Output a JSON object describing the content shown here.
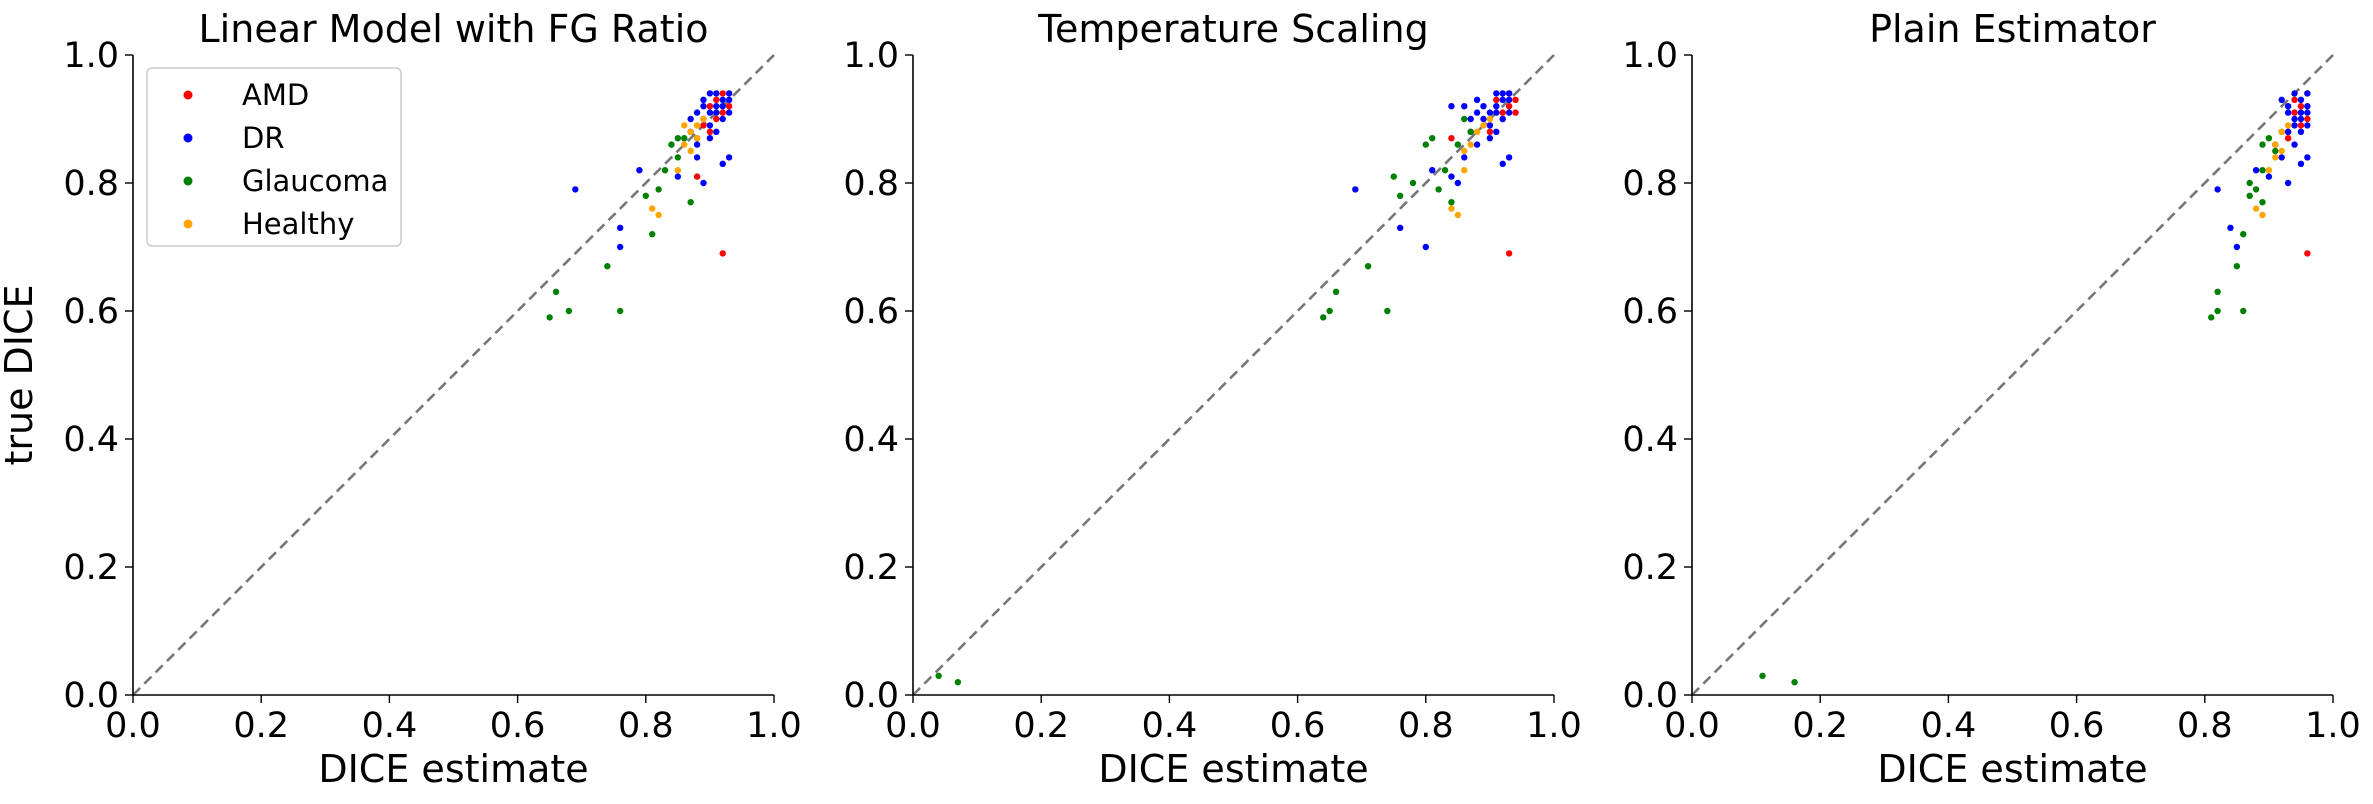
{
  "chart_data": [
    {
      "type": "scatter",
      "title": "Linear Model with FG Ratio",
      "xlabel": "DICE estimate",
      "ylabel": "true DICE",
      "xlim": [
        0,
        1
      ],
      "ylim": [
        0,
        1
      ],
      "xticks": [
        "0.0",
        "0.2",
        "0.4",
        "0.6",
        "0.8",
        "1.0"
      ],
      "yticks": [
        "0.0",
        "0.2",
        "0.4",
        "0.6",
        "0.8",
        "1.0"
      ],
      "reference_line": "y = x (dashed, gray)",
      "legend": {
        "position": "upper-left",
        "entries": [
          "AMD",
          "DR",
          "Glaucoma",
          "Healthy"
        ]
      },
      "series": [
        {
          "name": "AMD",
          "color": "#ff0000",
          "points": [
            [
              0.92,
              0.69
            ],
            [
              0.88,
              0.81
            ],
            [
              0.9,
              0.88
            ],
            [
              0.91,
              0.93
            ],
            [
              0.92,
              0.91
            ],
            [
              0.93,
              0.92
            ],
            [
              0.9,
              0.92
            ],
            [
              0.91,
              0.9
            ],
            [
              0.92,
              0.94
            ],
            [
              0.89,
              0.89
            ]
          ]
        },
        {
          "name": "DR",
          "color": "#0000ff",
          "points": [
            [
              0.69,
              0.79
            ],
            [
              0.76,
              0.73
            ],
            [
              0.76,
              0.7
            ],
            [
              0.79,
              0.82
            ],
            [
              0.85,
              0.81
            ],
            [
              0.88,
              0.84
            ],
            [
              0.89,
              0.8
            ],
            [
              0.92,
              0.83
            ],
            [
              0.93,
              0.84
            ],
            [
              0.87,
              0.88
            ],
            [
              0.89,
              0.9
            ],
            [
              0.9,
              0.91
            ],
            [
              0.91,
              0.92
            ],
            [
              0.92,
              0.93
            ],
            [
              0.9,
              0.94
            ],
            [
              0.91,
              0.94
            ],
            [
              0.93,
              0.93
            ],
            [
              0.88,
              0.91
            ],
            [
              0.89,
              0.92
            ],
            [
              0.9,
              0.89
            ],
            [
              0.92,
              0.9
            ],
            [
              0.93,
              0.91
            ],
            [
              0.88,
              0.86
            ],
            [
              0.91,
              0.88
            ],
            [
              0.92,
              0.92
            ],
            [
              0.89,
              0.93
            ],
            [
              0.9,
              0.87
            ],
            [
              0.91,
              0.91
            ],
            [
              0.93,
              0.94
            ],
            [
              0.87,
              0.9
            ]
          ]
        },
        {
          "name": "Glaucoma",
          "color": "#008000",
          "points": [
            [
              0.65,
              0.59
            ],
            [
              0.66,
              0.63
            ],
            [
              0.68,
              0.6
            ],
            [
              0.76,
              0.6
            ],
            [
              0.74,
              0.67
            ],
            [
              0.8,
              0.78
            ],
            [
              0.81,
              0.72
            ],
            [
              0.82,
              0.79
            ],
            [
              0.85,
              0.87
            ],
            [
              0.84,
              0.86
            ],
            [
              0.83,
              0.82
            ],
            [
              0.87,
              0.77
            ],
            [
              0.86,
              0.87
            ],
            [
              0.85,
              0.84
            ],
            [
              0.88,
              0.87
            ]
          ]
        },
        {
          "name": "Healthy",
          "color": "#ffa500",
          "points": [
            [
              0.81,
              0.76
            ],
            [
              0.82,
              0.75
            ],
            [
              0.85,
              0.82
            ],
            [
              0.86,
              0.86
            ],
            [
              0.87,
              0.88
            ],
            [
              0.88,
              0.89
            ],
            [
              0.89,
              0.9
            ],
            [
              0.87,
              0.85
            ],
            [
              0.86,
              0.89
            ],
            [
              0.88,
              0.87
            ]
          ]
        }
      ]
    },
    {
      "type": "scatter",
      "title": "Temperature Scaling",
      "xlabel": "DICE estimate",
      "ylabel": "",
      "xlim": [
        0,
        1
      ],
      "ylim": [
        0,
        1
      ],
      "xticks": [
        "0.0",
        "0.2",
        "0.4",
        "0.6",
        "0.8",
        "1.0"
      ],
      "yticks": [
        "0.0",
        "0.2",
        "0.4",
        "0.6",
        "0.8",
        "1.0"
      ],
      "reference_line": "y = x (dashed, gray)",
      "series": [
        {
          "name": "AMD",
          "color": "#ff0000",
          "points": [
            [
              0.93,
              0.69
            ],
            [
              0.84,
              0.87
            ],
            [
              0.9,
              0.88
            ],
            [
              0.92,
              0.91
            ],
            [
              0.93,
              0.92
            ],
            [
              0.94,
              0.91
            ],
            [
              0.91,
              0.93
            ],
            [
              0.92,
              0.9
            ],
            [
              0.93,
              0.94
            ],
            [
              0.9,
              0.89
            ],
            [
              0.94,
              0.93
            ]
          ]
        },
        {
          "name": "DR",
          "color": "#0000ff",
          "points": [
            [
              0.69,
              0.79
            ],
            [
              0.76,
              0.73
            ],
            [
              0.8,
              0.7
            ],
            [
              0.81,
              0.82
            ],
            [
              0.84,
              0.81
            ],
            [
              0.86,
              0.84
            ],
            [
              0.84,
              0.92
            ],
            [
              0.85,
              0.8
            ],
            [
              0.92,
              0.83
            ],
            [
              0.93,
              0.84
            ],
            [
              0.87,
              0.88
            ],
            [
              0.89,
              0.9
            ],
            [
              0.9,
              0.91
            ],
            [
              0.91,
              0.92
            ],
            [
              0.92,
              0.93
            ],
            [
              0.91,
              0.94
            ],
            [
              0.92,
              0.94
            ],
            [
              0.93,
              0.93
            ],
            [
              0.88,
              0.91
            ],
            [
              0.89,
              0.92
            ],
            [
              0.9,
              0.89
            ],
            [
              0.92,
              0.9
            ],
            [
              0.93,
              0.91
            ],
            [
              0.88,
              0.86
            ],
            [
              0.91,
              0.88
            ],
            [
              0.9,
              0.87
            ],
            [
              0.91,
              0.91
            ],
            [
              0.93,
              0.94
            ],
            [
              0.87,
              0.9
            ],
            [
              0.86,
              0.92
            ],
            [
              0.88,
              0.93
            ]
          ]
        },
        {
          "name": "Glaucoma",
          "color": "#008000",
          "points": [
            [
              0.04,
              0.03
            ],
            [
              0.07,
              0.02
            ],
            [
              0.64,
              0.59
            ],
            [
              0.65,
              0.6
            ],
            [
              0.66,
              0.63
            ],
            [
              0.71,
              0.67
            ],
            [
              0.74,
              0.6
            ],
            [
              0.76,
              0.78
            ],
            [
              0.78,
              0.8
            ],
            [
              0.8,
              0.86
            ],
            [
              0.81,
              0.87
            ],
            [
              0.82,
              0.79
            ],
            [
              0.83,
              0.82
            ],
            [
              0.85,
              0.86
            ],
            [
              0.84,
              0.77
            ],
            [
              0.87,
              0.88
            ],
            [
              0.86,
              0.9
            ],
            [
              0.75,
              0.81
            ]
          ]
        },
        {
          "name": "Healthy",
          "color": "#ffa500",
          "points": [
            [
              0.84,
              0.76
            ],
            [
              0.85,
              0.75
            ],
            [
              0.86,
              0.82
            ],
            [
              0.87,
              0.86
            ],
            [
              0.88,
              0.88
            ],
            [
              0.89,
              0.89
            ],
            [
              0.9,
              0.9
            ],
            [
              0.86,
              0.85
            ]
          ]
        }
      ]
    },
    {
      "type": "scatter",
      "title": "Plain Estimator",
      "xlabel": "DICE estimate",
      "ylabel": "",
      "xlim": [
        0,
        1
      ],
      "ylim": [
        0,
        1
      ],
      "xticks": [
        "0.0",
        "0.2",
        "0.4",
        "0.6",
        "0.8",
        "1.0"
      ],
      "yticks": [
        "0.0",
        "0.2",
        "0.4",
        "0.6",
        "0.8",
        "1.0"
      ],
      "reference_line": "y = x (dashed, gray)",
      "series": [
        {
          "name": "AMD",
          "color": "#ff0000",
          "points": [
            [
              0.96,
              0.69
            ],
            [
              0.91,
              0.86
            ],
            [
              0.93,
              0.88
            ],
            [
              0.94,
              0.91
            ],
            [
              0.95,
              0.92
            ],
            [
              0.96,
              0.9
            ],
            [
              0.94,
              0.93
            ],
            [
              0.95,
              0.89
            ],
            [
              0.96,
              0.94
            ],
            [
              0.93,
              0.87
            ]
          ]
        },
        {
          "name": "DR",
          "color": "#0000ff",
          "points": [
            [
              0.82,
              0.79
            ],
            [
              0.84,
              0.73
            ],
            [
              0.85,
              0.7
            ],
            [
              0.88,
              0.82
            ],
            [
              0.9,
              0.81
            ],
            [
              0.92,
              0.84
            ],
            [
              0.93,
              0.8
            ],
            [
              0.95,
              0.83
            ],
            [
              0.96,
              0.84
            ],
            [
              0.93,
              0.88
            ],
            [
              0.94,
              0.9
            ],
            [
              0.95,
              0.91
            ],
            [
              0.96,
              0.92
            ],
            [
              0.95,
              0.93
            ],
            [
              0.94,
              0.94
            ],
            [
              0.96,
              0.94
            ],
            [
              0.95,
              0.9
            ],
            [
              0.94,
              0.89
            ],
            [
              0.93,
              0.92
            ],
            [
              0.92,
              0.93
            ],
            [
              0.96,
              0.89
            ],
            [
              0.94,
              0.86
            ],
            [
              0.95,
              0.88
            ],
            [
              0.93,
              0.91
            ],
            [
              0.96,
              0.91
            ]
          ]
        },
        {
          "name": "Glaucoma",
          "color": "#008000",
          "points": [
            [
              0.11,
              0.03
            ],
            [
              0.16,
              0.02
            ],
            [
              0.81,
              0.59
            ],
            [
              0.82,
              0.6
            ],
            [
              0.82,
              0.63
            ],
            [
              0.85,
              0.67
            ],
            [
              0.86,
              0.6
            ],
            [
              0.87,
              0.78
            ],
            [
              0.87,
              0.8
            ],
            [
              0.89,
              0.86
            ],
            [
              0.9,
              0.87
            ],
            [
              0.88,
              0.79
            ],
            [
              0.89,
              0.82
            ],
            [
              0.91,
              0.86
            ],
            [
              0.89,
              0.77
            ],
            [
              0.92,
              0.88
            ],
            [
              0.91,
              0.85
            ],
            [
              0.86,
              0.72
            ]
          ]
        },
        {
          "name": "Healthy",
          "color": "#ffa500",
          "points": [
            [
              0.88,
              0.76
            ],
            [
              0.89,
              0.75
            ],
            [
              0.9,
              0.82
            ],
            [
              0.91,
              0.86
            ],
            [
              0.92,
              0.88
            ],
            [
              0.93,
              0.89
            ],
            [
              0.91,
              0.84
            ],
            [
              0.92,
              0.85
            ]
          ]
        }
      ]
    }
  ]
}
